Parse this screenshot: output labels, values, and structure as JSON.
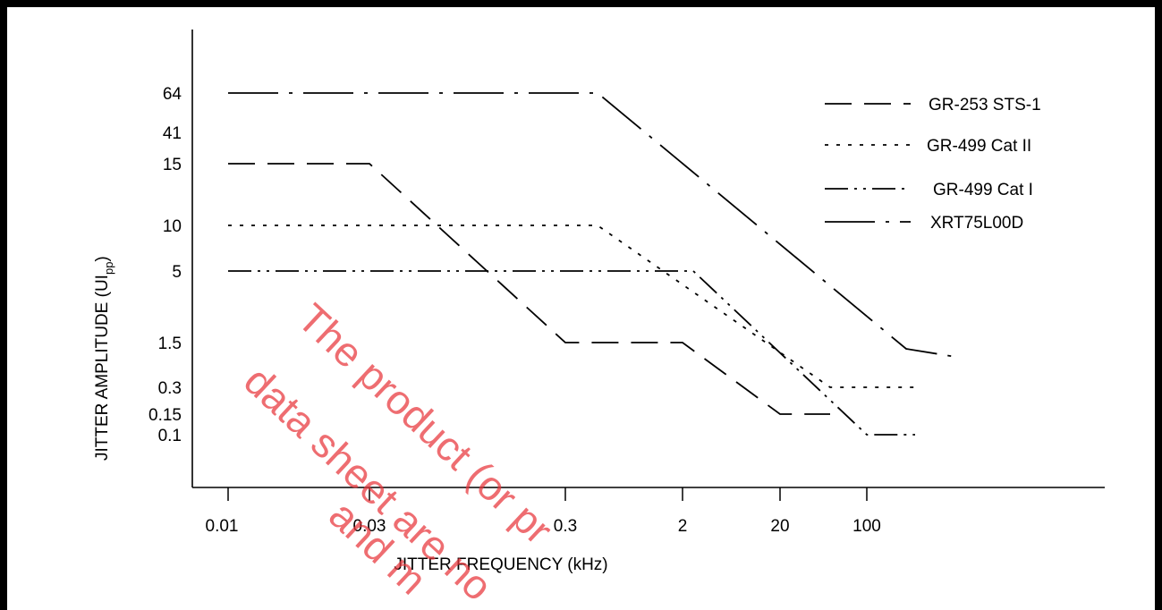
{
  "chart_data": {
    "type": "line",
    "title": "",
    "xlabel": "JITTER FREQUENCY  (kHz)",
    "ylabel_main": "JITTER AMPLITUDE (UI",
    "ylabel_sub": "pp",
    "ylabel_close": ")",
    "x_ticks": [
      "0.01",
      "0.03",
      "0.3",
      "2",
      "20",
      "100"
    ],
    "y_ticks": [
      "64",
      "41",
      "15",
      "10",
      "5",
      "1.5",
      "0.3",
      "0.15",
      "0.1"
    ],
    "series": [
      {
        "name": "GR-253   STS-1",
        "dash": "long",
        "points": [
          [
            "0.01",
            "15"
          ],
          [
            "0.03",
            "15"
          ],
          [
            "0.3",
            "1.5"
          ],
          [
            "2",
            "1.5"
          ],
          [
            "20",
            "0.15"
          ],
          [
            "~40",
            "0.15"
          ]
        ]
      },
      {
        "name": "GR-499   Cat II",
        "dash": "dotted",
        "points": [
          [
            "0.01",
            "10"
          ],
          [
            "0.4",
            "10"
          ],
          [
            "~40",
            "0.3"
          ],
          [
            "~150",
            "0.3"
          ]
        ]
      },
      {
        "name": "GR-499   Cat I",
        "dash": "dash-dot-dot",
        "points": [
          [
            "0.01",
            "5"
          ],
          [
            "~2.3",
            "5"
          ],
          [
            "100",
            "0.1"
          ],
          [
            "~150",
            "0.1"
          ]
        ]
      },
      {
        "name": "XRT75L00D",
        "dash": "long-dash-dot",
        "points": [
          [
            "0.01",
            "64"
          ],
          [
            "0.4",
            "64"
          ],
          [
            "~130",
            "1.2"
          ],
          [
            "~200",
            "1"
          ]
        ]
      }
    ],
    "legend_position": "top-right",
    "grid": false
  },
  "watermark": {
    "lines": [
      "The product (or pr",
      "data sheet are no",
      "and m"
    ],
    "color": "#e8343a"
  }
}
